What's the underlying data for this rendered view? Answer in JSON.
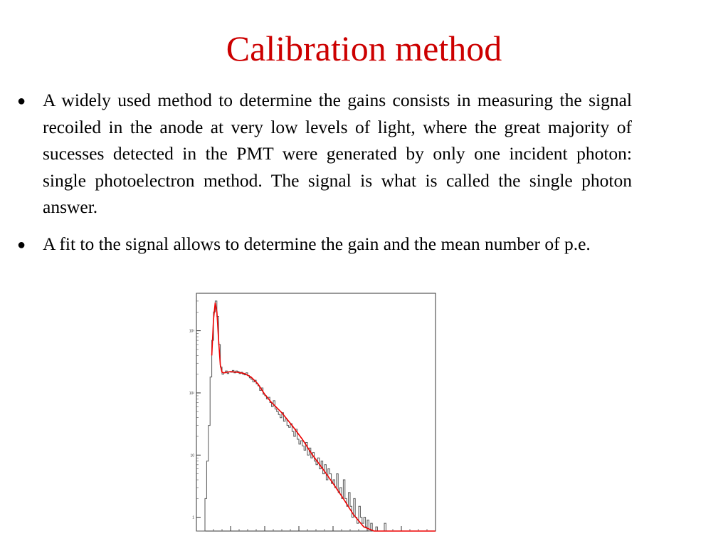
{
  "slide": {
    "title": "Calibration method",
    "bullets": [
      {
        "marker": "●",
        "text": "A widely used method to determine the gains consists in measuring the signal recoiled in the anode at very low levels of light, where the great majority of sucesses detected in the PMT were generated by only one incident photon: single photoelectron method. The signal is what is called the single photon answer."
      },
      {
        "marker": "●",
        "text": "A fit to the signal allows to determine the gain and the mean number of p.e."
      }
    ]
  },
  "chart_data": {
    "type": "line",
    "y_scale": "log",
    "ylim": [
      0.6,
      4000
    ],
    "xlim": [
      0,
      7
    ],
    "ytick_labels": [
      "1",
      "10",
      "10²",
      "10³"
    ],
    "series": [
      {
        "style": "histogram",
        "color": "#555555",
        "x": [
          0.0,
          0.05,
          0.1,
          0.15,
          0.2,
          0.25,
          0.3,
          0.35,
          0.4,
          0.45,
          0.5,
          0.55,
          0.6,
          0.65,
          0.7,
          0.75,
          0.8,
          0.85,
          0.9,
          0.95,
          1.0,
          1.05,
          1.1,
          1.15,
          1.2,
          1.25,
          1.3,
          1.35,
          1.4,
          1.45,
          1.5,
          1.55,
          1.6,
          1.65,
          1.7,
          1.75,
          1.8,
          1.85,
          1.9,
          1.95,
          2.0,
          2.05,
          2.1,
          2.15,
          2.2,
          2.25,
          2.3,
          2.35,
          2.4,
          2.45,
          2.5,
          2.55,
          2.6,
          2.65,
          2.7,
          2.75,
          2.8,
          2.85,
          2.9,
          2.95,
          3.0,
          3.05,
          3.1,
          3.15,
          3.2,
          3.25,
          3.3,
          3.35,
          3.4,
          3.45,
          3.5,
          3.55,
          3.6,
          3.65,
          3.7,
          3.75,
          3.8,
          3.85,
          3.9,
          3.95,
          4.0,
          4.05,
          4.1,
          4.15,
          4.2,
          4.25,
          4.3,
          4.35,
          4.4,
          4.45,
          4.5,
          4.55,
          4.6,
          4.65,
          4.7,
          4.75,
          4.8,
          4.85,
          4.9,
          4.95,
          5.0,
          5.05,
          5.1,
          5.15,
          5.2,
          5.25,
          5.3,
          5.35,
          5.4,
          5.45,
          5.5,
          5.55,
          5.6,
          5.65,
          5.7,
          5.75,
          5.8,
          5.85,
          5.9,
          5.95,
          6.0,
          6.05,
          6.1,
          6.15,
          6.2,
          6.25,
          6.3,
          6.35,
          6.4,
          6.45,
          6.5,
          6.55,
          6.6,
          6.65,
          6.7,
          6.75,
          6.8,
          6.85,
          6.9,
          6.95
        ],
        "values": [
          0.6,
          0.6,
          0.6,
          0.6,
          0.6,
          2,
          8,
          30,
          180,
          700,
          2000,
          3000,
          1700,
          600,
          260,
          200,
          210,
          225,
          205,
          220,
          215,
          230,
          210,
          225,
          220,
          205,
          215,
          200,
          195,
          210,
          190,
          175,
          165,
          150,
          160,
          140,
          130,
          110,
          120,
          95,
          90,
          80,
          85,
          70,
          60,
          75,
          55,
          50,
          45,
          40,
          48,
          35,
          38,
          30,
          28,
          32,
          24,
          20,
          26,
          18,
          15,
          17,
          14,
          12,
          16,
          10,
          13,
          9,
          11,
          8,
          7,
          9,
          6,
          8,
          5,
          7,
          4,
          6,
          5,
          3.5,
          4,
          3,
          5,
          2.5,
          3,
          2,
          4,
          2,
          1.5,
          2.5,
          1.5,
          1,
          2,
          1,
          0.8,
          1.5,
          1,
          0.8,
          1,
          0.7,
          0.9,
          0.6,
          0.8,
          0.6,
          0.6,
          0.7,
          0.6,
          0.6,
          0.6,
          0.6,
          0.8,
          0.6,
          0.6,
          0.6,
          0.6,
          0.6,
          0.6,
          0.6,
          0.6,
          0.6,
          0.6,
          0.6,
          0.6,
          0.6,
          0.6,
          0.6,
          0.6,
          0.6,
          0.6,
          0.6,
          0.6,
          0.6,
          0.6,
          0.6,
          0.6,
          0.6,
          0.6,
          0.6,
          0.6,
          0.6
        ]
      },
      {
        "style": "fit",
        "color": "#ee0000",
        "x": [
          0.45,
          0.5,
          0.55,
          0.6,
          0.65,
          0.7,
          0.75,
          0.8,
          0.9,
          1.0,
          1.2,
          1.4,
          1.6,
          1.8,
          2.0,
          2.2,
          2.5,
          2.8,
          3.1,
          3.4,
          3.7,
          4.0,
          4.3,
          4.6,
          4.9,
          5.2,
          5.4,
          5.6,
          6.0,
          6.5,
          7.0
        ],
        "values": [
          400,
          1500,
          2800,
          2000,
          700,
          280,
          215,
          210,
          215,
          220,
          215,
          205,
          180,
          140,
          95,
          70,
          48,
          30,
          18,
          10,
          6,
          3.5,
          2,
          1.1,
          0.7,
          0.6,
          0.6,
          0.6,
          0.6,
          0.6,
          0.6
        ]
      }
    ]
  }
}
